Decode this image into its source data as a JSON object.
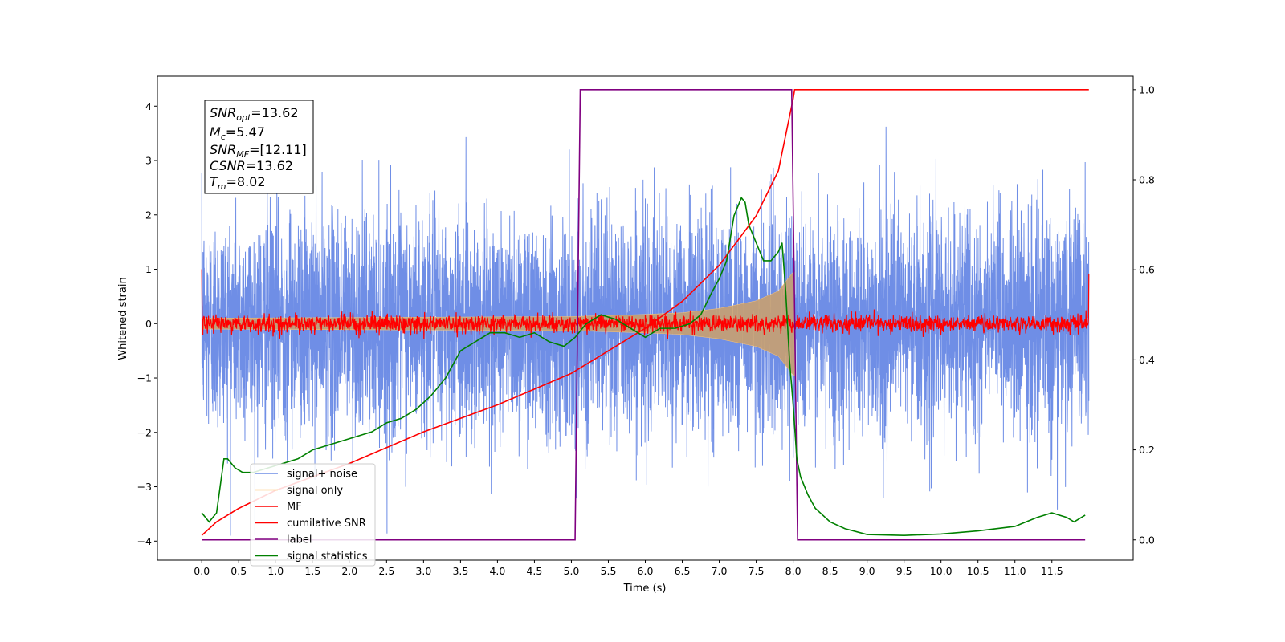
{
  "chart_data": {
    "type": "line",
    "title": "",
    "xlabel": "Time (s)",
    "ylabel": "Whitened strain",
    "y2label": "",
    "xlim": [
      -0.6,
      12.6
    ],
    "ylim": [
      -4.35,
      4.55
    ],
    "y2lim": [
      -0.045,
      1.03
    ],
    "xticks": [
      "0.0",
      "0.5",
      "1.0",
      "1.5",
      "2.0",
      "2.5",
      "3.0",
      "3.5",
      "4.0",
      "4.5",
      "5.0",
      "5.5",
      "6.0",
      "6.5",
      "7.0",
      "7.5",
      "8.0",
      "8.5",
      "9.0",
      "9.5",
      "10.0",
      "10.5",
      "11.0",
      "11.5"
    ],
    "yticks": [
      "4",
      "3",
      "2",
      "1",
      "0",
      "−1",
      "−2",
      "−3",
      "−4"
    ],
    "y2ticks": [
      "1.0",
      "0.8",
      "0.6",
      "0.4",
      "0.2",
      "0.0"
    ],
    "legend_position": "lower-left",
    "legend": [
      {
        "label": "signal+ noise",
        "color": "#6f8ee6"
      },
      {
        "label": "signal only",
        "color": "#ffc878"
      },
      {
        "label": "MF",
        "color": "#ff0000"
      },
      {
        "label": "cumilative SNR",
        "color": "#ff0000"
      },
      {
        "label": "label",
        "color": "#800080"
      },
      {
        "label": "signal statistics",
        "color": "#008000"
      }
    ],
    "info_box": {
      "snr_opt": {
        "main": "SNR",
        "sub": "opt",
        "value": "=13.62"
      },
      "mc": {
        "main": "M",
        "sub": "c",
        "value": "=5.47"
      },
      "snr_mf": {
        "main": "SNR",
        "sub": "MF",
        "value": "=[12.11]"
      },
      "csnr": {
        "main": "CSNR",
        "sub": "",
        "value": "=13.62"
      },
      "tm": {
        "main": "T",
        "sub": "m",
        "value": "=8.02"
      }
    },
    "series": [
      {
        "name": "signal+ noise",
        "axis": "left",
        "color": "#6f8ee6",
        "x_range": [
          0.0,
          12.0
        ],
        "amplitude_std": 1.0,
        "description_values": "whitened strain noise between about -3.9 and 4.2"
      },
      {
        "name": "signal only",
        "axis": "left",
        "color": "#c8a070",
        "x_range": [
          0.0,
          8.02
        ],
        "envelope": {
          "x": [
            0.0,
            5.0,
            6.0,
            6.5,
            7.0,
            7.5,
            7.8,
            8.0
          ],
          "y": [
            0.1,
            0.13,
            0.17,
            0.2,
            0.28,
            0.42,
            0.6,
            0.95
          ]
        }
      },
      {
        "name": "MF",
        "axis": "left",
        "color": "#ff0000",
        "x_range": [
          0.0,
          12.0
        ],
        "amplitude": 0.08,
        "edge_values": [
          1.0,
          0.92
        ]
      },
      {
        "name": "cumilative SNR",
        "axis": "right",
        "color": "#ff0000",
        "x": [
          0.0,
          0.2,
          0.5,
          1.0,
          2.0,
          3.0,
          4.0,
          5.0,
          6.0,
          6.5,
          7.0,
          7.5,
          7.8,
          8.0,
          8.02,
          12.0
        ],
        "y": [
          0.01,
          0.04,
          0.07,
          0.11,
          0.17,
          0.24,
          0.3,
          0.37,
          0.47,
          0.53,
          0.61,
          0.72,
          0.82,
          0.98,
          1.0,
          1.0
        ]
      },
      {
        "name": "label",
        "axis": "right",
        "color": "#800080",
        "x": [
          0.0,
          5.05,
          5.12,
          7.98,
          8.06,
          11.95
        ],
        "y": [
          0.0,
          0.0,
          1.0,
          1.0,
          0.0,
          0.0
        ]
      },
      {
        "name": "signal statistics",
        "axis": "right",
        "color": "#008000",
        "x": [
          0.0,
          0.1,
          0.2,
          0.25,
          0.3,
          0.35,
          0.45,
          0.55,
          0.7,
          0.9,
          1.1,
          1.3,
          1.5,
          1.7,
          1.9,
          2.1,
          2.3,
          2.5,
          2.7,
          2.9,
          3.1,
          3.3,
          3.5,
          3.7,
          3.9,
          4.1,
          4.3,
          4.5,
          4.7,
          4.9,
          5.05,
          5.2,
          5.4,
          5.6,
          5.8,
          6.0,
          6.2,
          6.4,
          6.6,
          6.75,
          6.9,
          7.0,
          7.1,
          7.2,
          7.3,
          7.35,
          7.4,
          7.5,
          7.6,
          7.7,
          7.8,
          7.85,
          7.9,
          7.95,
          8.0,
          8.05,
          8.1,
          8.2,
          8.3,
          8.5,
          8.7,
          9.0,
          9.5,
          10.0,
          10.5,
          11.0,
          11.3,
          11.5,
          11.7,
          11.8,
          11.95
        ],
        "y": [
          0.06,
          0.04,
          0.06,
          0.12,
          0.18,
          0.18,
          0.16,
          0.15,
          0.15,
          0.16,
          0.17,
          0.18,
          0.2,
          0.21,
          0.22,
          0.23,
          0.24,
          0.26,
          0.27,
          0.29,
          0.32,
          0.36,
          0.42,
          0.44,
          0.46,
          0.46,
          0.45,
          0.46,
          0.44,
          0.43,
          0.45,
          0.48,
          0.5,
          0.49,
          0.47,
          0.45,
          0.47,
          0.47,
          0.48,
          0.5,
          0.55,
          0.58,
          0.62,
          0.72,
          0.76,
          0.75,
          0.7,
          0.66,
          0.62,
          0.62,
          0.64,
          0.66,
          0.55,
          0.4,
          0.3,
          0.18,
          0.14,
          0.1,
          0.07,
          0.04,
          0.025,
          0.012,
          0.01,
          0.013,
          0.02,
          0.03,
          0.05,
          0.06,
          0.05,
          0.04,
          0.055
        ]
      }
    ]
  }
}
